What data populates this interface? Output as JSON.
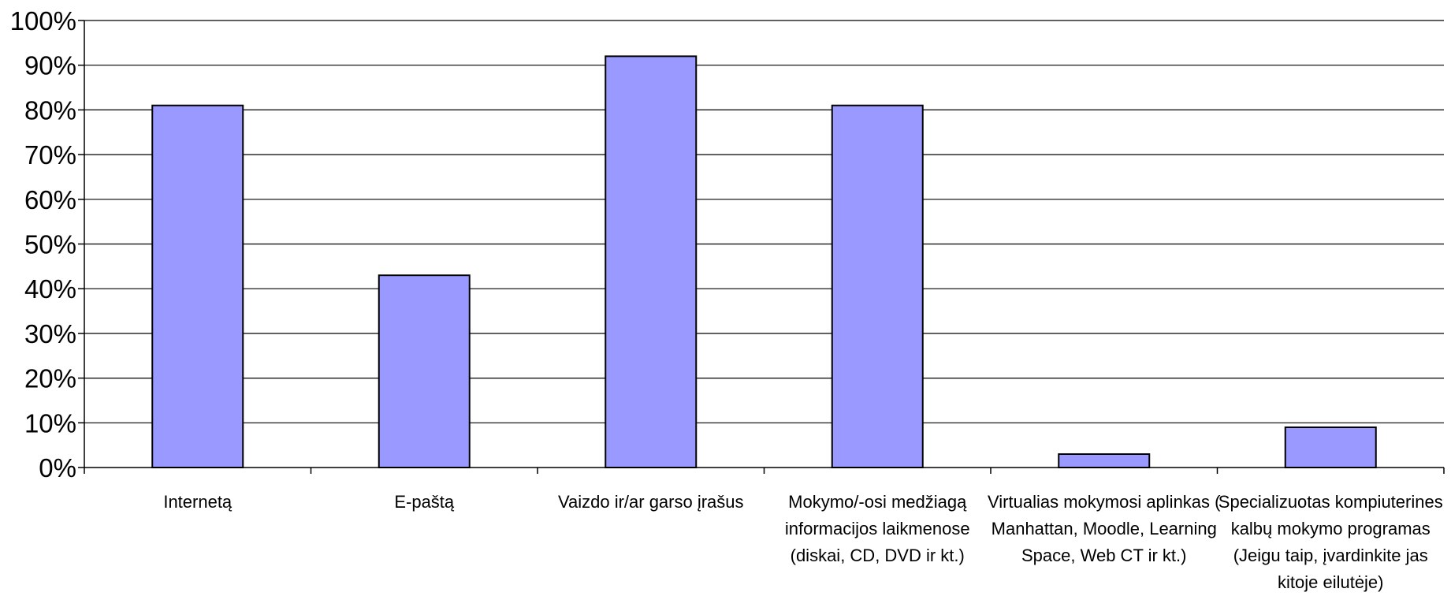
{
  "chart_data": {
    "type": "bar",
    "categories": [
      [
        "Internetą"
      ],
      [
        "E-paštą"
      ],
      [
        "Vaizdo ir/ar garso įrašus"
      ],
      [
        "Mokymo/-osi medžiagą",
        "informacijos laikmenose",
        "(diskai, CD, DVD ir kt.)"
      ],
      [
        "Virtualias mokymosi aplinkas (",
        "Manhattan, Moodle, Learning",
        "Space, Web CT ir kt.)"
      ],
      [
        "Specializuotas kompiuterines",
        "kalbų mokymo programas",
        "(Jeigu taip, įvardinkite jas",
        "kitoje eilutėje)"
      ]
    ],
    "values": [
      81,
      43,
      92,
      81,
      3,
      9
    ],
    "ylim": [
      0,
      100
    ],
    "yticks": [
      "0%",
      "10%",
      "20%",
      "30%",
      "40%",
      "50%",
      "60%",
      "70%",
      "80%",
      "90%",
      "100%"
    ],
    "grid": true,
    "bar_color": "#9999ff"
  }
}
